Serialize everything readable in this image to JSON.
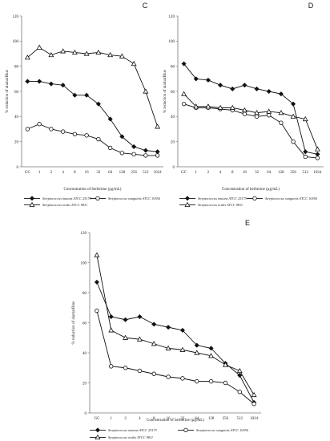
{
  "figure": {
    "categories": [
      "GC",
      "1",
      "2",
      "4",
      "8",
      "16",
      "32",
      "64",
      "128",
      "256",
      "512",
      "1024"
    ],
    "series_names": [
      "Streptococcus mutans ATCC 25175",
      "Streptococcus sanguinis ATCC 10556",
      "Streptococcus oralis ATCC 9811"
    ]
  },
  "chart_data": [
    {
      "type": "line",
      "panel": "C",
      "categories": [
        "GC",
        "1",
        "2",
        "4",
        "8",
        "16",
        "32",
        "64",
        "128",
        "256",
        "512",
        "1024"
      ],
      "xlabel": "Concentration of berberine (μg/mL)",
      "ylabel": "% reduction of alamarBlue",
      "ylim": [
        0,
        120
      ],
      "yticks": [
        0,
        20,
        40,
        60,
        80,
        100,
        120
      ],
      "grid": false,
      "legend": "bottom",
      "series": [
        {
          "name": "Streptococcus mutans ATCC 25175",
          "marker": "diamond",
          "values": [
            68,
            68,
            66,
            65,
            57,
            57,
            50,
            38,
            24,
            16,
            13,
            12
          ]
        },
        {
          "name": "Streptococcus sanguinis ATCC 10556",
          "marker": "circle",
          "values": [
            30,
            34,
            30,
            28,
            26,
            25,
            22,
            15,
            11,
            10,
            9,
            9
          ]
        },
        {
          "name": "Streptococcus oralis ATCC 9811",
          "marker": "triangle",
          "values": [
            87,
            95,
            89,
            92,
            91,
            90,
            91,
            89,
            88,
            82,
            60,
            32
          ]
        }
      ]
    },
    {
      "type": "line",
      "panel": "D",
      "categories": [
        "GC",
        "1",
        "2",
        "4",
        "8",
        "16",
        "32",
        "64",
        "128",
        "256",
        "512",
        "1024"
      ],
      "xlabel": "Concentration of berberine (μg/mL)",
      "ylabel": "% reduction of alamarBlue",
      "ylim": [
        0,
        120
      ],
      "yticks": [
        0,
        20,
        40,
        60,
        80,
        100,
        120
      ],
      "grid": false,
      "legend": "bottom",
      "series": [
        {
          "name": "Streptococcus mutans ATCC 25175",
          "marker": "diamond",
          "values": [
            82,
            70,
            69,
            65,
            62,
            65,
            62,
            60,
            58,
            50,
            12,
            10
          ]
        },
        {
          "name": "Streptococcus sanguinis ATCC 10556",
          "marker": "circle",
          "values": [
            50,
            47,
            47,
            46,
            45,
            42,
            40,
            41,
            35,
            20,
            8,
            7
          ]
        },
        {
          "name": "Streptococcus oralis ATCC 9811",
          "marker": "triangle",
          "values": [
            58,
            48,
            48,
            47,
            47,
            45,
            43,
            44,
            43,
            40,
            38,
            14
          ]
        }
      ]
    },
    {
      "type": "line",
      "panel": "E",
      "categories": [
        "GC",
        "1",
        "2",
        "4",
        "8",
        "16",
        "32",
        "64",
        "128",
        "256",
        "512",
        "1024"
      ],
      "xlabel": "Concentration of berberine (μg/mL)",
      "ylabel": "% reduction of alamarBlue",
      "ylim": [
        0,
        120
      ],
      "yticks": [
        0,
        20,
        40,
        60,
        80,
        100,
        120
      ],
      "grid": false,
      "legend": "bottom",
      "series": [
        {
          "name": "Streptococcus mutans ATCC 25175",
          "marker": "diamond",
          "values": [
            87,
            64,
            62,
            64,
            59,
            57,
            55,
            45,
            43,
            33,
            25,
            7
          ]
        },
        {
          "name": "Streptococcus sanguinis ATCC 10556",
          "marker": "circle",
          "values": [
            68,
            31,
            30,
            28,
            26,
            24,
            23,
            21,
            21,
            20,
            14,
            6
          ]
        },
        {
          "name": "Streptococcus oralis ATCC 9811",
          "marker": "triangle",
          "values": [
            105,
            55,
            50,
            49,
            46,
            43,
            42,
            40,
            38,
            32,
            28,
            12
          ]
        }
      ]
    }
  ]
}
